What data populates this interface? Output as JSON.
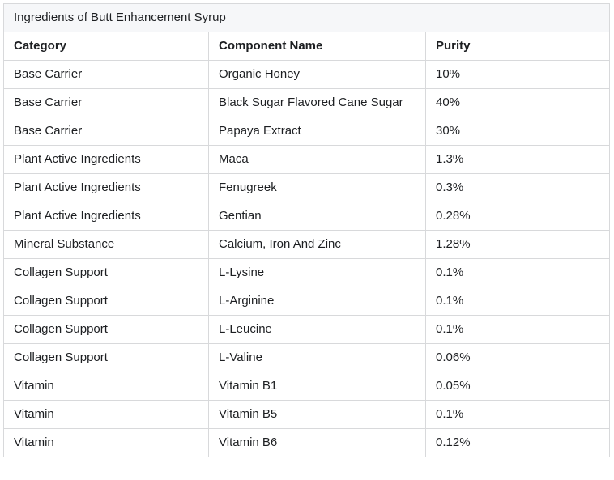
{
  "table": {
    "title": "Ingredients of Butt Enhancement Syrup",
    "columns": {
      "category": "Category",
      "component": "Component Name",
      "purity": "Purity"
    },
    "rows": [
      {
        "category": "Base Carrier",
        "component": "Organic Honey",
        "purity": "10%"
      },
      {
        "category": "Base Carrier",
        "component": "Black Sugar Flavored Cane Sugar",
        "purity": "40%"
      },
      {
        "category": "Base Carrier",
        "component": "Papaya Extract",
        "purity": "30%"
      },
      {
        "category": "Plant Active Ingredients",
        "component": "Maca",
        "purity": "1.3%"
      },
      {
        "category": "Plant Active Ingredients",
        "component": "Fenugreek",
        "purity": "0.3%"
      },
      {
        "category": "Plant Active Ingredients",
        "component": "Gentian",
        "purity": "0.28%"
      },
      {
        "category": "Mineral Substance",
        "component": "Calcium, Iron And Zinc",
        "purity": "1.28%"
      },
      {
        "category": "Collagen Support",
        "component": "L-Lysine",
        "purity": "0.1%"
      },
      {
        "category": "Collagen Support",
        "component": "L-Arginine",
        "purity": "0.1%"
      },
      {
        "category": "Collagen Support",
        "component": "L-Leucine",
        "purity": "0.1%"
      },
      {
        "category": "Collagen Support",
        "component": "L-Valine",
        "purity": "0.06%"
      },
      {
        "category": "Vitamin",
        "component": "Vitamin B1",
        "purity": "0.05%"
      },
      {
        "category": "Vitamin",
        "component": "Vitamin B5",
        "purity": "0.1%"
      },
      {
        "category": "Vitamin",
        "component": "Vitamin B6",
        "purity": "0.12%"
      }
    ],
    "colors": {
      "title_background": "#f6f7f9",
      "border": "#d8d9db",
      "text": "#1d1f22",
      "page_background": "#ffffff"
    }
  },
  "chart_data": {
    "type": "table",
    "title": "Ingredients of Butt Enhancement Syrup",
    "columns": [
      "Category",
      "Component Name",
      "Purity"
    ],
    "rows": [
      [
        "Base Carrier",
        "Organic Honey",
        "10%"
      ],
      [
        "Base Carrier",
        "Black Sugar Flavored Cane Sugar",
        "40%"
      ],
      [
        "Base Carrier",
        "Papaya Extract",
        "30%"
      ],
      [
        "Plant Active Ingredients",
        "Maca",
        "1.3%"
      ],
      [
        "Plant Active Ingredients",
        "Fenugreek",
        "0.3%"
      ],
      [
        "Plant Active Ingredients",
        "Gentian",
        "0.28%"
      ],
      [
        "Mineral Substance",
        "Calcium, Iron And Zinc",
        "1.28%"
      ],
      [
        "Collagen Support",
        "L-Lysine",
        "0.1%"
      ],
      [
        "Collagen Support",
        "L-Arginine",
        "0.1%"
      ],
      [
        "Collagen Support",
        "L-Leucine",
        "0.1%"
      ],
      [
        "Collagen Support",
        "L-Valine",
        "0.06%"
      ],
      [
        "Vitamin",
        "Vitamin B1",
        "0.05%"
      ],
      [
        "Vitamin",
        "Vitamin B5",
        "0.1%"
      ],
      [
        "Vitamin",
        "Vitamin B6",
        "0.12%"
      ]
    ],
    "purity_values_percent": [
      10,
      40,
      30,
      1.3,
      0.3,
      0.28,
      1.28,
      0.1,
      0.1,
      0.1,
      0.06,
      0.05,
      0.1,
      0.12
    ]
  }
}
